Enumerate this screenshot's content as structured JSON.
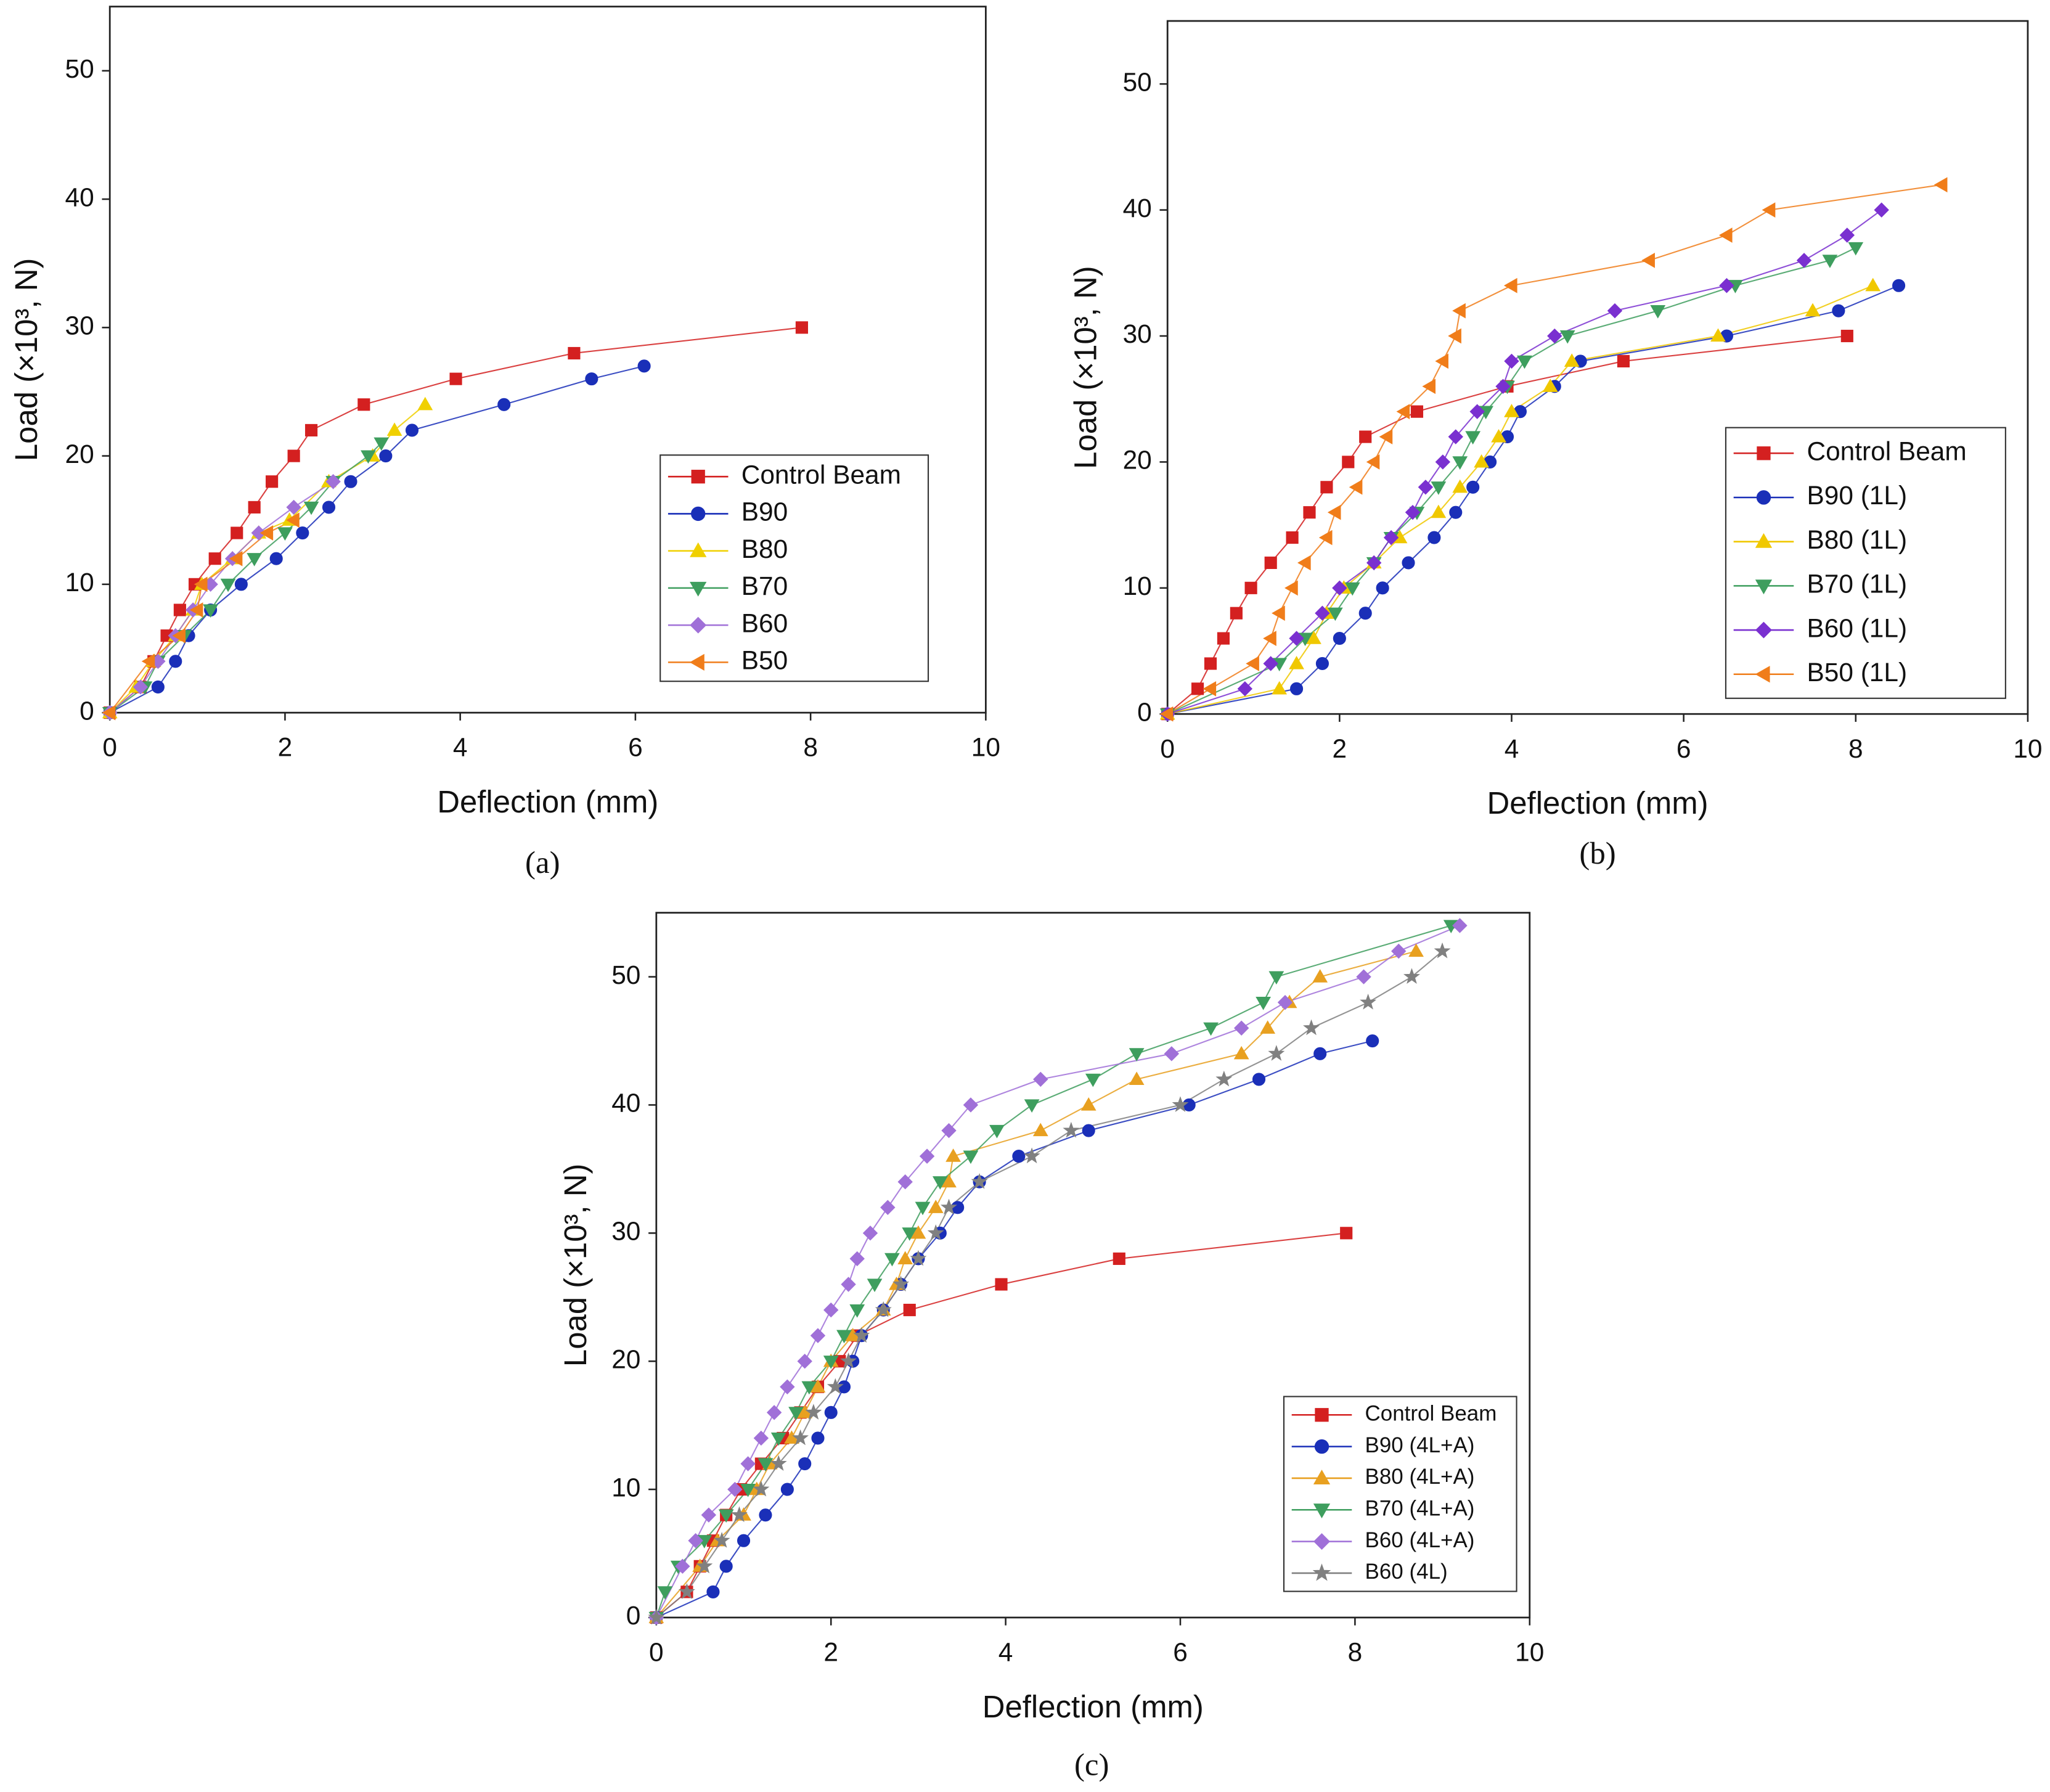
{
  "chart_data": [
    {
      "type": "line",
      "caption": "(a)",
      "x_label": "Deflection (mm)",
      "y_label": "Load (×10³, N)",
      "xlim": [
        0,
        10
      ],
      "ylim": [
        0,
        55
      ],
      "xticks": [
        0,
        2,
        4,
        6,
        8,
        10
      ],
      "yticks": [
        0,
        10,
        20,
        30,
        40,
        50
      ],
      "legend": "lower right",
      "series": [
        {
          "name": "Control Beam",
          "color": "#d42020",
          "marker": "square",
          "x": [
            0,
            0.35,
            0.5,
            0.65,
            0.8,
            0.97,
            1.2,
            1.45,
            1.65,
            1.85,
            2.1,
            2.3,
            2.9,
            3.95,
            5.3,
            7.9
          ],
          "values": [
            0,
            2,
            4,
            6,
            8,
            10,
            12,
            14,
            16,
            18,
            20,
            22,
            24,
            26,
            28,
            30
          ]
        },
        {
          "name": "B90",
          "color": "#1a2fb8",
          "marker": "circle",
          "x": [
            0,
            0.55,
            0.75,
            0.9,
            1.15,
            1.5,
            1.9,
            2.2,
            2.5,
            2.75,
            3.15,
            3.45,
            4.5,
            5.5,
            6.1
          ],
          "values": [
            0,
            2,
            4,
            6,
            8,
            10,
            12,
            14,
            16,
            18,
            20,
            22,
            24,
            26,
            27
          ]
        },
        {
          "name": "B80",
          "color": "#f0d000",
          "marker": "triangle-up",
          "x": [
            0,
            0.3,
            0.5,
            0.75,
            0.95,
            1.05,
            1.4,
            1.7,
            2.05,
            2.5,
            3.0,
            3.25,
            3.6
          ],
          "values": [
            0,
            2,
            4,
            6,
            8,
            10,
            12,
            14,
            15,
            18,
            20,
            22,
            24
          ]
        },
        {
          "name": "B70",
          "color": "#3e9e5e",
          "marker": "triangle-down",
          "x": [
            0,
            0.4,
            0.55,
            0.85,
            1.15,
            1.35,
            1.65,
            2.0,
            2.3,
            2.55,
            2.95,
            3.1
          ],
          "values": [
            0,
            2,
            4,
            6,
            8,
            10,
            12,
            14,
            16,
            18,
            20,
            21
          ]
        },
        {
          "name": "B60",
          "color": "#a070d8",
          "marker": "diamond",
          "x": [
            0,
            0.35,
            0.55,
            0.75,
            0.95,
            1.15,
            1.4,
            1.7,
            2.1,
            2.55
          ],
          "values": [
            0,
            2,
            4,
            6,
            8,
            10,
            12,
            14,
            16,
            18
          ]
        },
        {
          "name": "B50",
          "color": "#f07d1a",
          "marker": "triangle-left",
          "x": [
            0,
            0.45,
            0.8,
            1.0,
            1.05,
            1.45,
            1.8,
            2.1
          ],
          "values": [
            0,
            4,
            6,
            8,
            10,
            12,
            14,
            15
          ]
        }
      ]
    },
    {
      "type": "line",
      "caption": "(b)",
      "x_label": "Deflection (mm)",
      "y_label": "Load (×10³, N)",
      "xlim": [
        0,
        10
      ],
      "ylim": [
        0,
        55
      ],
      "xticks": [
        0,
        2,
        4,
        6,
        8,
        10
      ],
      "yticks": [
        0,
        10,
        20,
        30,
        40,
        50
      ],
      "legend": "lower right",
      "series": [
        {
          "name": "Control Beam",
          "color": "#d42020",
          "marker": "square",
          "x": [
            0,
            0.35,
            0.5,
            0.65,
            0.8,
            0.97,
            1.2,
            1.45,
            1.65,
            1.85,
            2.1,
            2.3,
            2.9,
            3.95,
            5.3,
            7.9
          ],
          "values": [
            0,
            2,
            4,
            6,
            8,
            10,
            12,
            14,
            16,
            18,
            20,
            22,
            24,
            26,
            28,
            30
          ]
        },
        {
          "name": "B90 (1L)",
          "color": "#1a2fb8",
          "marker": "circle",
          "x": [
            0,
            1.5,
            1.8,
            2.0,
            2.3,
            2.5,
            2.8,
            3.1,
            3.35,
            3.55,
            3.75,
            3.95,
            4.1,
            4.5,
            4.8,
            6.5,
            7.8,
            8.5
          ],
          "values": [
            0,
            2,
            4,
            6,
            8,
            10,
            12,
            14,
            16,
            18,
            20,
            22,
            24,
            26,
            28,
            30,
            32,
            34
          ]
        },
        {
          "name": "B80 (1L)",
          "color": "#f0c800",
          "marker": "triangle-up",
          "x": [
            0,
            1.3,
            1.5,
            1.7,
            1.85,
            2.05,
            2.4,
            2.7,
            3.15,
            3.4,
            3.65,
            3.85,
            4.0,
            4.45,
            4.7,
            6.4,
            7.5,
            8.2
          ],
          "values": [
            0,
            2,
            4,
            6,
            8,
            10,
            12,
            14,
            16,
            18,
            20,
            22,
            24,
            26,
            28,
            30,
            32,
            34
          ]
        },
        {
          "name": "B70 (1L)",
          "color": "#3e9e5e",
          "marker": "triangle-down",
          "x": [
            0,
            1.3,
            1.6,
            1.95,
            2.15,
            2.4,
            2.6,
            2.9,
            3.15,
            3.4,
            3.55,
            3.7,
            3.95,
            4.15,
            4.65,
            5.7,
            6.6,
            7.7,
            8.0
          ],
          "values": [
            0,
            4,
            6,
            8,
            10,
            12,
            14,
            16,
            18,
            20,
            22,
            24,
            26,
            28,
            30,
            32,
            34,
            36,
            37
          ]
        },
        {
          "name": "B60 (1L)",
          "color": "#7a30d0",
          "marker": "diamond",
          "x": [
            0,
            0.9,
            1.2,
            1.5,
            1.8,
            2.0,
            2.4,
            2.6,
            2.85,
            3.0,
            3.2,
            3.35,
            3.6,
            3.9,
            4.0,
            4.5,
            5.2,
            6.5,
            7.4,
            7.9,
            8.3
          ],
          "values": [
            0,
            2,
            4,
            6,
            8,
            10,
            12,
            14,
            16,
            18,
            20,
            22,
            24,
            26,
            28,
            30,
            32,
            34,
            36,
            38,
            40
          ]
        },
        {
          "name": "B50 (1L)",
          "color": "#f07d1a",
          "marker": "triangle-left",
          "x": [
            0,
            0.5,
            1.0,
            1.2,
            1.3,
            1.45,
            1.6,
            1.85,
            1.95,
            2.2,
            2.4,
            2.55,
            2.75,
            3.05,
            3.2,
            3.35,
            3.4,
            4.0,
            5.6,
            6.5,
            7.0,
            9.0
          ],
          "values": [
            0,
            2,
            4,
            6,
            8,
            10,
            12,
            14,
            16,
            18,
            20,
            22,
            24,
            26,
            28,
            30,
            32,
            34,
            36,
            38,
            40,
            42
          ]
        }
      ]
    },
    {
      "type": "line",
      "caption": "(c)",
      "x_label": "Deflection (mm)",
      "y_label": "Load (×10³, N)",
      "xlim": [
        0,
        10
      ],
      "ylim": [
        0,
        55
      ],
      "xticks": [
        0,
        2,
        4,
        6,
        8,
        10
      ],
      "yticks": [
        0,
        10,
        20,
        30,
        40,
        50
      ],
      "legend": "lower right",
      "series": [
        {
          "name": "Control Beam",
          "color": "#d42020",
          "marker": "square",
          "x": [
            0,
            0.35,
            0.5,
            0.65,
            0.8,
            0.97,
            1.2,
            1.45,
            1.65,
            1.85,
            2.1,
            2.3,
            2.9,
            3.95,
            5.3,
            7.9
          ],
          "values": [
            0,
            2,
            4,
            6,
            8,
            10,
            12,
            14,
            16,
            18,
            20,
            22,
            24,
            26,
            28,
            30
          ]
        },
        {
          "name": "B90 (4L+A)",
          "color": "#1a2fb8",
          "marker": "circle",
          "x": [
            0,
            0.65,
            0.8,
            1.0,
            1.25,
            1.5,
            1.7,
            1.85,
            2.0,
            2.15,
            2.25,
            2.35,
            2.6,
            2.8,
            3.0,
            3.25,
            3.45,
            3.7,
            4.15,
            4.95,
            6.1,
            6.9,
            7.6,
            8.2
          ],
          "values": [
            0,
            2,
            4,
            6,
            8,
            10,
            12,
            14,
            16,
            18,
            20,
            22,
            24,
            26,
            28,
            30,
            32,
            34,
            36,
            38,
            40,
            42,
            44,
            45
          ]
        },
        {
          "name": "B80 (4L+A)",
          "color": "#e8a020",
          "marker": "triangle-up",
          "x": [
            0,
            0.5,
            0.7,
            1.0,
            1.15,
            1.3,
            1.55,
            1.7,
            1.85,
            2.0,
            2.25,
            2.6,
            2.75,
            2.85,
            3.0,
            3.2,
            3.35,
            3.4,
            4.4,
            4.95,
            5.5,
            6.7,
            7.0,
            7.25,
            7.6,
            8.7
          ],
          "values": [
            0,
            4,
            6,
            8,
            10,
            12,
            14,
            16,
            18,
            20,
            22,
            24,
            26,
            28,
            30,
            32,
            34,
            36,
            38,
            40,
            42,
            44,
            46,
            48,
            50,
            52
          ]
        },
        {
          "name": "B70 (4L+A)",
          "color": "#3e9e5e",
          "marker": "triangle-down",
          "x": [
            0,
            0.1,
            0.25,
            0.55,
            0.8,
            1.05,
            1.25,
            1.4,
            1.6,
            1.75,
            2.0,
            2.15,
            2.3,
            2.5,
            2.7,
            2.9,
            3.05,
            3.25,
            3.6,
            3.9,
            4.3,
            5.0,
            5.5,
            6.35,
            6.95,
            7.1,
            9.1
          ],
          "values": [
            0,
            2,
            4,
            6,
            8,
            10,
            12,
            14,
            16,
            18,
            20,
            22,
            24,
            26,
            28,
            30,
            32,
            34,
            36,
            38,
            40,
            42,
            44,
            46,
            48,
            50,
            54
          ]
        },
        {
          "name": "B60 (4L+A)",
          "color": "#a070d8",
          "marker": "diamond",
          "x": [
            0,
            0.3,
            0.45,
            0.6,
            0.9,
            1.05,
            1.2,
            1.35,
            1.5,
            1.7,
            1.85,
            2.0,
            2.2,
            2.3,
            2.45,
            2.65,
            2.85,
            3.1,
            3.35,
            3.6,
            4.4,
            5.9,
            6.7,
            7.2,
            8.1,
            8.5,
            9.2
          ],
          "values": [
            0,
            4,
            6,
            8,
            10,
            12,
            14,
            16,
            18,
            20,
            22,
            24,
            26,
            28,
            30,
            32,
            34,
            36,
            38,
            40,
            42,
            44,
            46,
            48,
            50,
            52,
            54
          ]
        },
        {
          "name": "B60 (4L)",
          "color": "#808080",
          "marker": "star",
          "x": [
            0,
            0.35,
            0.55,
            0.75,
            0.95,
            1.2,
            1.4,
            1.65,
            1.8,
            2.05,
            2.2,
            2.35,
            2.6,
            2.8,
            3.0,
            3.2,
            3.35,
            3.7,
            4.3,
            4.75,
            6.0,
            6.5,
            7.1,
            7.5,
            8.15,
            8.65,
            9.0
          ],
          "values": [
            0,
            2,
            4,
            6,
            8,
            10,
            12,
            14,
            16,
            18,
            20,
            22,
            24,
            26,
            28,
            30,
            32,
            34,
            36,
            38,
            40,
            42,
            44,
            46,
            48,
            50,
            52
          ]
        }
      ]
    }
  ]
}
